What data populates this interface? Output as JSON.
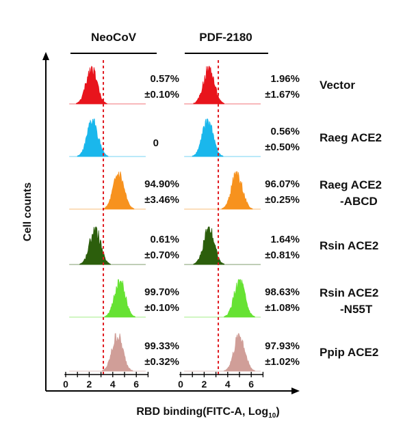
{
  "chart_data": {
    "type": "histogram",
    "panels": [
      {
        "title": "NeoCoV"
      },
      {
        "title": "PDF-2180"
      }
    ],
    "ylabel": "Cell counts",
    "xlabel": "RBD binding(FITC-A, Log",
    "xlabel_subscript": "10",
    "xlabel_suffix": ")",
    "xlim": [
      0,
      7
    ],
    "x_ticks": [
      "0",
      "2",
      "4",
      "6"
    ],
    "gate_x": 3.2,
    "rows": [
      {
        "label": "Vector",
        "color": "#e8141c",
        "values": [
          {
            "pct": "0.57%",
            "sd": "±0.10%",
            "peak": 2.2
          },
          {
            "pct": "1.96%",
            "sd": "±1.67%",
            "peak": 2.4
          }
        ]
      },
      {
        "label": "Raeg ACE2",
        "color": "#1ab7ec",
        "values": [
          {
            "pct": "0",
            "sd": "",
            "peak": 2.3
          },
          {
            "pct": "0.56%",
            "sd": "±0.50%",
            "peak": 2.3
          }
        ]
      },
      {
        "label": "Raeg ACE2\n-ABCD",
        "color": "#f7921e",
        "values": [
          {
            "pct": "94.90%",
            "sd": "±3.46%",
            "peak": 4.5
          },
          {
            "pct": "96.07%",
            "sd": "±0.25%",
            "peak": 4.8
          }
        ]
      },
      {
        "label": "Rsin ACE2",
        "color": "#2c5e0c",
        "values": [
          {
            "pct": "0.61%",
            "sd": "±0.70%",
            "peak": 2.5
          },
          {
            "pct": "1.64%",
            "sd": "±0.81%",
            "peak": 2.4
          }
        ]
      },
      {
        "label": "Rsin ACE2\n-N55T",
        "color": "#66e233",
        "values": [
          {
            "pct": "99.70%",
            "sd": "±0.10%",
            "peak": 4.6
          },
          {
            "pct": "98.63%",
            "sd": "±1.08%",
            "peak": 5.0
          }
        ]
      },
      {
        "label": "Ppip ACE2",
        "color": "#d09e98",
        "values": [
          {
            "pct": "99.33%",
            "sd": "±0.32%",
            "peak": 4.4
          },
          {
            "pct": "97.93%",
            "sd": "±1.02%",
            "peak": 5.0
          }
        ]
      }
    ]
  }
}
